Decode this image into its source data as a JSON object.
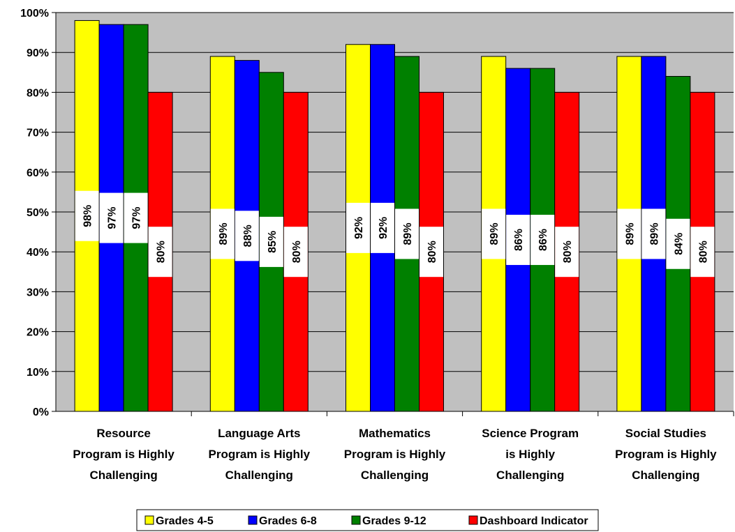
{
  "chart_data": {
    "type": "bar",
    "title": "",
    "xlabel": "",
    "ylabel": "",
    "ylim": [
      0,
      100
    ],
    "y_tick_step": 10,
    "y_tick_labels": [
      "0%",
      "10%",
      "20%",
      "30%",
      "40%",
      "50%",
      "60%",
      "70%",
      "80%",
      "90%",
      "100%"
    ],
    "grid": true,
    "plot_background": "#c0c0c0",
    "legend_position": "bottom",
    "categories": [
      [
        "Resource",
        "Program is Highly",
        "Challenging"
      ],
      [
        "Language Arts",
        "Program is Highly",
        "Challenging"
      ],
      [
        "Mathematics",
        "Program is Highly",
        "Challenging"
      ],
      [
        "Science Program",
        "is Highly",
        "Challenging"
      ],
      [
        "Social Studies",
        "Program is Highly",
        "Challenging"
      ]
    ],
    "series": [
      {
        "name": "Grades 4-5",
        "color": "#ffff00",
        "values": [
          98,
          89,
          92,
          89,
          89
        ],
        "labels": [
          "98%",
          "89%",
          "92%",
          "89%",
          "89%"
        ]
      },
      {
        "name": "Grades 6-8",
        "color": "#0000ff",
        "values": [
          97,
          88,
          92,
          86,
          89
        ],
        "labels": [
          "97%",
          "88%",
          "92%",
          "86%",
          "89%"
        ]
      },
      {
        "name": "Grades 9-12",
        "color": "#008000",
        "values": [
          97,
          85,
          89,
          86,
          84
        ],
        "labels": [
          "97%",
          "85%",
          "89%",
          "86%",
          "84%"
        ]
      },
      {
        "name": "Dashboard Indicator",
        "color": "#ff0000",
        "values": [
          80,
          80,
          80,
          80,
          80
        ],
        "labels": [
          "80%",
          "80%",
          "80%",
          "80%",
          "80%"
        ]
      }
    ]
  }
}
